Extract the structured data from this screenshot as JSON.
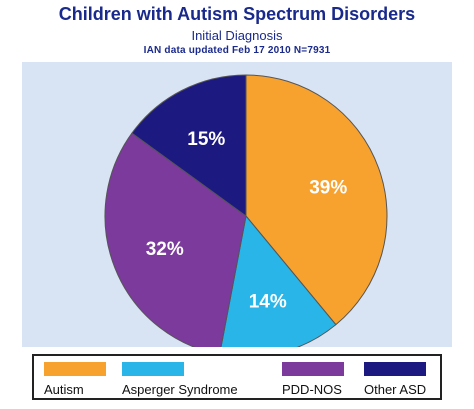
{
  "header": {
    "title": "Children with Autism Spectrum Disorders",
    "subtitle": "Initial Diagnosis",
    "source": "IAN data updated Feb 17 2010 N=7931"
  },
  "chart_data": {
    "type": "pie",
    "title": "Children with Autism Spectrum Disorders",
    "subtitle": "Initial Diagnosis",
    "categories": [
      "Autism",
      "Asperger Syndrome",
      "PDD-NOS",
      "Other ASD"
    ],
    "values": [
      39,
      14,
      32,
      15
    ],
    "labels": [
      "39%",
      "14%",
      "32%",
      "15%"
    ],
    "colors": [
      "#f7a12f",
      "#29b5e8",
      "#7b3a9c",
      "#1c1a80"
    ],
    "legend_position": "bottom"
  }
}
